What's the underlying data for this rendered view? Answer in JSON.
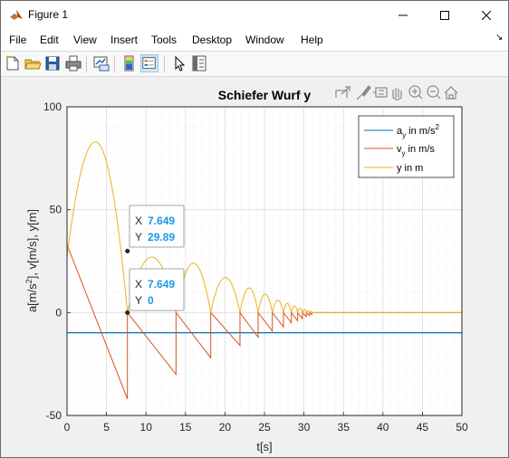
{
  "window": {
    "title": "Figure 1",
    "minimize_icon": "minimize-icon",
    "maximize_icon": "maximize-icon",
    "close_icon": "close-icon"
  },
  "menubar": {
    "items": [
      "File",
      "Edit",
      "View",
      "Insert",
      "Tools",
      "Desktop",
      "Window",
      "Help"
    ],
    "overflow_glyph": "↘"
  },
  "toolbar": {
    "buttons": [
      "new-figure-icon",
      "open-file-icon",
      "save-icon",
      "print-icon",
      "link-plot-icon",
      "colorbar-icon",
      "legend-icon",
      "edit-plot-icon",
      "property-inspector-icon"
    ]
  },
  "axes_toolbar": {
    "buttons": [
      "export-icon",
      "brush-icon",
      "data-tips-icon",
      "pan-icon",
      "zoom-in-icon",
      "zoom-out-icon",
      "home-icon"
    ]
  },
  "chart_data": {
    "type": "line",
    "title": "Schiefer Wurf y",
    "xlabel": "t[s]",
    "ylabel": "a[m/s2], v[m/s], y[m]",
    "ylabel_parts": {
      "pre": "a[m/s",
      "sup": "2",
      "post": "], v[m/s], y[m]"
    },
    "xlim": [
      0,
      50
    ],
    "ylim": [
      -50,
      100
    ],
    "xticks": [
      0,
      5,
      10,
      15,
      20,
      25,
      30,
      35,
      40,
      45,
      50
    ],
    "yticks": [
      -50,
      0,
      50,
      100
    ],
    "grid": true,
    "minor_grid": true,
    "legend_position": "top-right",
    "series": [
      {
        "name": "ay in m/s2",
        "legend": {
          "base": "a",
          "sub": "y",
          "rest": " in m/s",
          "sup": "2"
        },
        "color": "#0072bd",
        "x": [
          0,
          50
        ],
        "y": [
          -9.81,
          -9.81
        ]
      },
      {
        "name": "vy in m/s",
        "legend": {
          "base": "v",
          "sub": "y",
          "rest": " in m/s",
          "sup": ""
        },
        "color": "#d95319",
        "x": [
          0,
          7.65,
          7.65,
          13.8,
          13.8,
          18.2,
          18.2,
          21.9,
          21.9,
          24.2,
          24.2,
          26.0,
          26.0,
          27.4,
          27.4,
          28.4,
          28.4,
          29.2,
          29.2,
          29.8,
          29.8,
          30.3,
          30.3,
          30.7,
          30.7,
          31.0,
          31.0,
          50
        ],
        "y": [
          33,
          -42,
          0,
          -30,
          0,
          -22,
          0,
          -16,
          0,
          -12,
          0,
          -9,
          0,
          -7,
          0,
          -5,
          0,
          -4,
          0,
          -3,
          0,
          -2,
          0,
          -1.5,
          0,
          -1,
          0,
          0
        ]
      },
      {
        "name": "y in m",
        "legend": {
          "base": "y in m",
          "sub": "",
          "rest": "",
          "sup": ""
        },
        "color": "#edb120",
        "bounces": [
          [
            0,
            7.65,
            83,
            27
          ],
          [
            7.65,
            13.8,
            27
          ],
          [
            13.8,
            18.2,
            24
          ],
          [
            18.2,
            21.9,
            17
          ],
          [
            21.9,
            24.2,
            12
          ],
          [
            24.2,
            26.0,
            9
          ],
          [
            26.0,
            27.4,
            6
          ],
          [
            27.4,
            28.4,
            4.5
          ],
          [
            28.4,
            29.2,
            3.2
          ],
          [
            29.2,
            29.8,
            2.2
          ],
          [
            29.8,
            30.3,
            1.5
          ],
          [
            30.3,
            30.7,
            1.0
          ],
          [
            30.7,
            31.0,
            0.6
          ]
        ],
        "note_tail_zero_until": 50
      }
    ],
    "datatips": [
      {
        "x": 7.649,
        "y": 29.89,
        "x_label": "X",
        "x_value": "7.649",
        "y_label": "Y",
        "y_value": "29.89"
      },
      {
        "x": 7.649,
        "y": 0,
        "x_label": "X",
        "x_value": "7.649",
        "y_label": "Y",
        "y_value": "0"
      }
    ]
  }
}
